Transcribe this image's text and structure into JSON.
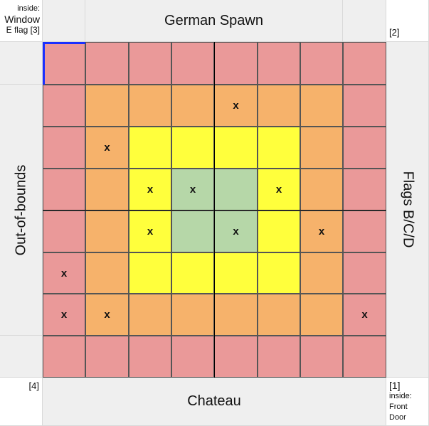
{
  "corners": {
    "top_left": [
      "inside:",
      "Window",
      "E flag [3]"
    ],
    "top_right": "[2]",
    "bottom_left": "[4]",
    "bottom_right": [
      "[1]",
      "inside:",
      "Front",
      "Door"
    ]
  },
  "labels": {
    "top": "German Spawn",
    "bottom": "Chateau",
    "left": "Out-of-bounds",
    "right": "Flags B/C/D"
  },
  "colors": {
    "P": "#ea9999",
    "O": "#f6b26b",
    "Y": "#ffff3c",
    "G": "#b6d7a8",
    "header_bg": "#efefef",
    "grid_line": "#555555",
    "selection": "#1a2fff"
  },
  "grid": {
    "rows": [
      [
        "P",
        "P",
        "P",
        "P",
        "P",
        "P",
        "P",
        "P"
      ],
      [
        "P",
        "O",
        "O",
        "O",
        "O",
        "O",
        "O",
        "P"
      ],
      [
        "P",
        "O",
        "Y",
        "Y",
        "Y",
        "Y",
        "O",
        "P"
      ],
      [
        "P",
        "O",
        "Y",
        "G",
        "G",
        "Y",
        "O",
        "P"
      ],
      [
        "P",
        "O",
        "Y",
        "G",
        "G",
        "Y",
        "O",
        "P"
      ],
      [
        "P",
        "O",
        "Y",
        "Y",
        "Y",
        "Y",
        "O",
        "P"
      ],
      [
        "P",
        "O",
        "O",
        "O",
        "O",
        "O",
        "O",
        "P"
      ],
      [
        "P",
        "P",
        "P",
        "P",
        "P",
        "P",
        "P",
        "P"
      ]
    ],
    "marks": [
      [
        "",
        "",
        "",
        "",
        "",
        "",
        "",
        ""
      ],
      [
        "",
        "",
        "",
        "",
        "x",
        "",
        "",
        ""
      ],
      [
        "",
        "x",
        "",
        "",
        "",
        "",
        "",
        ""
      ],
      [
        "",
        "",
        "x",
        "x",
        "",
        "x",
        "",
        ""
      ],
      [
        "",
        "",
        "x",
        "",
        "x",
        "",
        "x",
        ""
      ],
      [
        "x",
        "",
        "",
        "",
        "",
        "",
        "",
        ""
      ],
      [
        "x",
        "x",
        "",
        "",
        "",
        "",
        "",
        "x"
      ],
      [
        "",
        "",
        "",
        "",
        "",
        "",
        "",
        ""
      ]
    ],
    "selected_cell": [
      0,
      0
    ]
  }
}
